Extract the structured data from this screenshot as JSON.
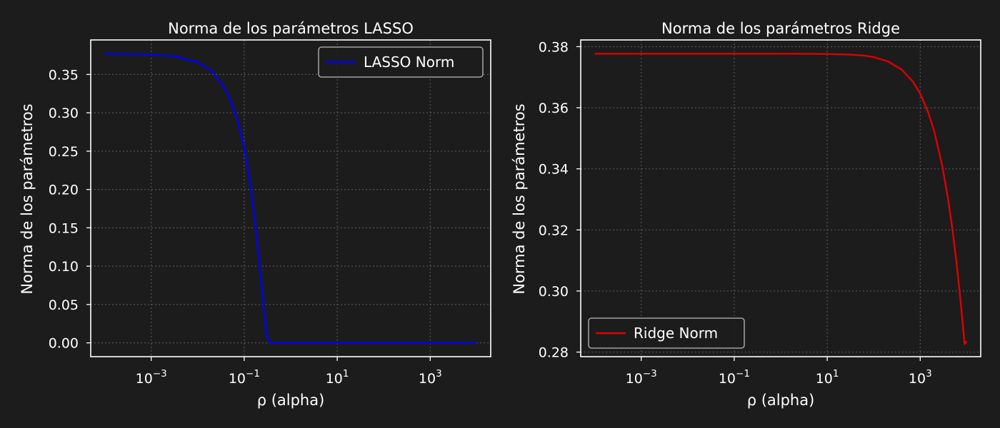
{
  "background_color": "#1c1c1c",
  "text_color": "#ffffff",
  "grid_color": "#555555",
  "chart_data": [
    {
      "type": "line",
      "title": "Norma de los parámetros LASSO",
      "xlabel": "ρ (alpha)",
      "ylabel": "Norma de los parámetros",
      "x_scale": "log",
      "xlim": [
        5e-05,
        20000
      ],
      "ylim": [
        -0.018,
        0.395
      ],
      "x_ticks": [
        {
          "value": 0.001,
          "base": "10",
          "exp": "−3"
        },
        {
          "value": 0.1,
          "base": "10",
          "exp": "−1"
        },
        {
          "value": 10,
          "base": "10",
          "exp": "1"
        },
        {
          "value": 1000,
          "base": "10",
          "exp": "3"
        }
      ],
      "y_ticks": [
        {
          "value": 0.0,
          "label": "0.00"
        },
        {
          "value": 0.05,
          "label": "0.05"
        },
        {
          "value": 0.1,
          "label": "0.10"
        },
        {
          "value": 0.15,
          "label": "0.15"
        },
        {
          "value": 0.2,
          "label": "0.20"
        },
        {
          "value": 0.25,
          "label": "0.25"
        },
        {
          "value": 0.3,
          "label": "0.30"
        },
        {
          "value": 0.35,
          "label": "0.35"
        }
      ],
      "grid": true,
      "legend_position": "top-right",
      "series": [
        {
          "name": "LASSO Norm",
          "color": "#0000ff",
          "x": [
            0.0001,
            0.001,
            0.003,
            0.01,
            0.02,
            0.04,
            0.06,
            0.08,
            0.1,
            0.13,
            0.17,
            0.2,
            0.25,
            0.3,
            0.33,
            0.37,
            0.42,
            1,
            10,
            100,
            1000,
            10000
          ],
          "y": [
            0.377,
            0.376,
            0.374,
            0.366,
            0.355,
            0.33,
            0.305,
            0.28,
            0.255,
            0.215,
            0.16,
            0.12,
            0.06,
            0.012,
            0.004,
            0.0,
            0.0,
            0.0,
            0.0,
            0.0,
            0.0,
            0.0
          ]
        }
      ]
    },
    {
      "type": "line",
      "title": "Norma de los parámetros Ridge",
      "xlabel": "ρ (alpha)",
      "ylabel": "Norma de los parámetros",
      "x_scale": "log",
      "xlim": [
        5e-05,
        20000
      ],
      "ylim": [
        0.2785,
        0.3822
      ],
      "x_ticks": [
        {
          "value": 0.001,
          "base": "10",
          "exp": "−3"
        },
        {
          "value": 0.1,
          "base": "10",
          "exp": "−1"
        },
        {
          "value": 10,
          "base": "10",
          "exp": "1"
        },
        {
          "value": 1000,
          "base": "10",
          "exp": "3"
        }
      ],
      "y_ticks": [
        {
          "value": 0.28,
          "label": "0.28"
        },
        {
          "value": 0.3,
          "label": "0.30"
        },
        {
          "value": 0.32,
          "label": "0.32"
        },
        {
          "value": 0.34,
          "label": "0.34"
        },
        {
          "value": 0.36,
          "label": "0.36"
        },
        {
          "value": 0.38,
          "label": "0.38"
        }
      ],
      "grid": true,
      "legend_position": "bottom-left",
      "series": [
        {
          "name": "Ridge Norm",
          "color": "#e00000",
          "x": [
            0.0001,
            0.01,
            1,
            10,
            30,
            60,
            100,
            200,
            400,
            700,
            1000,
            1500,
            2000,
            3000,
            4000,
            5000,
            6000,
            7000,
            8000,
            9000,
            10000
          ],
          "y": [
            0.3777,
            0.3777,
            0.3777,
            0.3776,
            0.3774,
            0.3771,
            0.3766,
            0.3752,
            0.3725,
            0.3685,
            0.3646,
            0.3583,
            0.3523,
            0.3408,
            0.3299,
            0.3195,
            0.3096,
            0.3002,
            0.2912,
            0.2826,
            0.2836
          ]
        }
      ]
    }
  ]
}
